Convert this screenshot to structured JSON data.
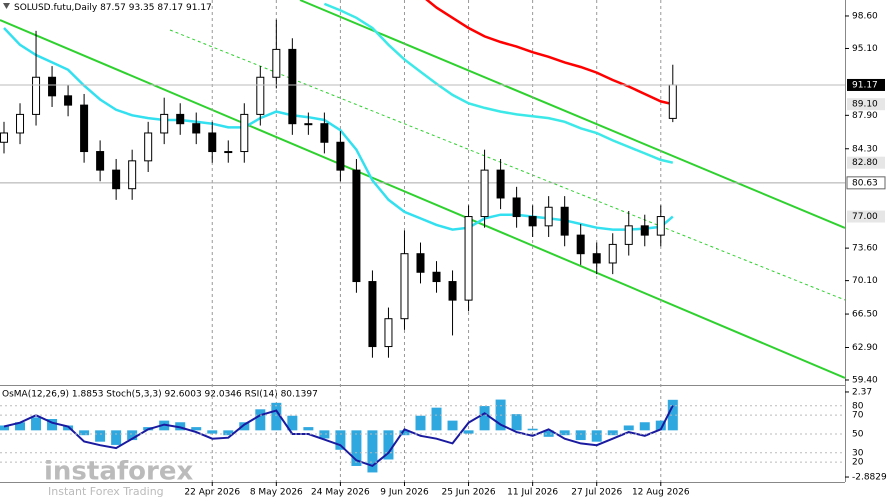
{
  "chart_data": {
    "type": "candlestick",
    "title": "SOLUSD.futu,Daily",
    "x": [
      "2026-03-01",
      "2026-03-05",
      "2026-03-09",
      "2026-03-13",
      "2026-03-17",
      "2026-03-21",
      "2026-03-25",
      "2026-03-29",
      "2026-04-02",
      "2026-04-06",
      "2026-04-10",
      "2026-04-14",
      "2026-04-18",
      "2026-04-22",
      "2026-04-26",
      "2026-04-30",
      "2026-05-04",
      "2026-05-08",
      "2026-05-12",
      "2026-05-16",
      "2026-05-20",
      "2026-05-24",
      "2026-05-28",
      "2026-06-01",
      "2026-06-05",
      "2026-06-09",
      "2026-06-13",
      "2026-06-17",
      "2026-06-21",
      "2026-06-25",
      "2026-06-29",
      "2026-07-03",
      "2026-07-07",
      "2026-07-11",
      "2026-07-15",
      "2026-07-19",
      "2026-07-23",
      "2026-07-27",
      "2026-07-31",
      "2026-08-04",
      "2026-08-08",
      "2026-08-12",
      "2026-08-15"
    ],
    "open": [
      85,
      86,
      88,
      92,
      90,
      89,
      84,
      82,
      80,
      83,
      86,
      88,
      87,
      86,
      84,
      84,
      88,
      92,
      95,
      87,
      87,
      85,
      82,
      70,
      63,
      66,
      73,
      71,
      70,
      68,
      77,
      82,
      79,
      77,
      76,
      78,
      75,
      73,
      72,
      74,
      76,
      75,
      87.57
    ],
    "high": [
      87.2,
      89.2,
      97,
      93.2,
      91.2,
      90.2,
      85.2,
      83.2,
      84.2,
      87.2,
      89.8,
      89.2,
      88.2,
      87.2,
      85.2,
      89.2,
      93.2,
      98.2,
      96.2,
      88.2,
      88.2,
      86.2,
      83.2,
      71.2,
      67.2,
      75.5,
      74.2,
      72.2,
      71.2,
      78.2,
      84.2,
      83.2,
      80.2,
      78.2,
      79.2,
      79.2,
      76.2,
      74.2,
      75.2,
      77.6,
      77.2,
      78.2,
      93.35
    ],
    "low": [
      83.8,
      84.8,
      86.8,
      88.8,
      87.8,
      82.8,
      80.8,
      78.8,
      78.8,
      81.8,
      84.8,
      85.8,
      84.8,
      82.8,
      82.8,
      82.8,
      86.8,
      90.8,
      85.8,
      85.8,
      83.8,
      80.8,
      68.8,
      61.8,
      61.8,
      64.8,
      69.8,
      68.8,
      64.2,
      66.8,
      75.8,
      77.8,
      75.8,
      74.8,
      74.8,
      73.8,
      71.8,
      70.8,
      70.8,
      72.8,
      73.8,
      73.8,
      87.17
    ],
    "close": [
      86,
      88,
      92,
      90,
      89,
      84,
      82,
      80,
      83,
      86,
      88,
      87,
      86,
      84,
      84,
      88,
      92,
      95,
      87,
      87,
      85,
      82,
      70,
      63,
      66,
      73,
      71,
      70,
      68,
      77,
      82,
      79,
      77,
      76,
      78,
      75,
      73,
      72,
      74,
      76,
      75,
      77,
      91.17
    ],
    "close_label_color": "#000000",
    "up_color": "#ffffff",
    "down_color": "#000000",
    "edge_color": "#000000",
    "series": [
      {
        "color": "#ff0000",
        "end_label": "89.10",
        "label_bg": "#e6e6e6",
        "values": [
          null,
          null,
          null,
          null,
          null,
          null,
          null,
          null,
          null,
          null,
          null,
          null,
          null,
          null,
          null,
          null,
          null,
          null,
          null,
          null,
          null,
          null,
          null,
          null,
          null,
          null,
          100.9,
          99.5,
          98.4,
          97.3,
          96.4,
          95.8,
          95.3,
          94.7,
          94.2,
          93.6,
          93.1,
          92.5,
          91.7,
          91.0,
          90.2,
          89.4,
          89.1
        ]
      },
      {
        "color": "#3de8e8",
        "end_label": "82.80",
        "label_bg": "#e6e6e6",
        "values": [
          null,
          null,
          null,
          null,
          null,
          null,
          null,
          null,
          null,
          null,
          null,
          null,
          null,
          null,
          null,
          null,
          null,
          null,
          null,
          null,
          99.9,
          99.2,
          98.4,
          97.3,
          95.5,
          93.9,
          92.6,
          91.3,
          90.1,
          89.2,
          88.7,
          88.3,
          88.0,
          87.8,
          87.6,
          87.2,
          86.5,
          86.0,
          85.2,
          84.5,
          83.8,
          83.1,
          82.8
        ]
      },
      {
        "color": "#33e0f0",
        "end_label": "77.00",
        "label_bg": "#e6e6e6",
        "values": [
          97.3,
          95.5,
          94.4,
          93.6,
          92.8,
          91.1,
          89.6,
          88.5,
          87.9,
          87.6,
          87.4,
          87.4,
          87.2,
          87.0,
          86.6,
          86.6,
          87.6,
          88.3,
          87.9,
          87.7,
          87.4,
          86.3,
          84.2,
          80.9,
          78.8,
          77.5,
          76.8,
          76.1,
          75.6,
          75.8,
          76.8,
          77.2,
          77.2,
          77.0,
          76.8,
          76.6,
          76.2,
          75.8,
          75.6,
          75.6,
          75.7,
          75.9,
          77.0
        ]
      }
    ],
    "levels": [
      {
        "value": 80.63,
        "label": "80.63"
      }
    ],
    "xlim": [
      "2026-02-28",
      "2026-09-27"
    ],
    "ylim": [
      58.86,
      100.32
    ],
    "yticks": [
      {
        "value": 98.6,
        "label": "98.60"
      },
      {
        "value": 95.1,
        "label": "95.10"
      },
      {
        "value": 87.9,
        "label": "87.90"
      },
      {
        "value": 84.3,
        "label": "84.30"
      },
      {
        "value": 73.6,
        "label": "73.60"
      },
      {
        "value": 70.1,
        "label": "70.10"
      },
      {
        "value": 66.5,
        "label": "66.50"
      },
      {
        "value": 62.9,
        "label": "62.90"
      },
      {
        "value": 59.4,
        "label": "59.40"
      }
    ],
    "xticks": [
      {
        "value": "2026-04-22",
        "label": "22 Apr 2026"
      },
      {
        "value": "2026-05-08",
        "label": "8 May 2026"
      },
      {
        "value": "2026-05-24",
        "label": "24 May 2026"
      },
      {
        "value": "2026-06-09",
        "label": "9 Jun 2026"
      },
      {
        "value": "2026-06-25",
        "label": "25 Jun 2026"
      },
      {
        "value": "2026-07-11",
        "label": "11 Jul 2026"
      },
      {
        "value": "2026-07-27",
        "label": "27 Jul 2026"
      },
      {
        "value": "2026-08-12",
        "label": "12 Aug 2026"
      }
    ],
    "grid": "x",
    "indicator": {
      "title": "OsMA(12,26,9) 1.8853 Stoch(5,3,3) 92.6003 92.0346 RSI(14) 80.1397",
      "osma": [
        0.3,
        0.5,
        0.8,
        0.7,
        0.3,
        -0.3,
        -0.7,
        -0.9,
        -0.6,
        0.2,
        0.6,
        0.5,
        0.2,
        -0.2,
        -0.3,
        0.5,
        1.3,
        1.7,
        0.9,
        0.2,
        -0.5,
        -1.2,
        -2.2,
        -2.6,
        -1.8,
        -0.3,
        0.9,
        1.4,
        0.6,
        -0.2,
        1.5,
        1.9,
        1.0,
        0.1,
        -0.4,
        -0.3,
        -0.6,
        -0.7,
        -0.3,
        0.3,
        0.5,
        0.6,
        1.8853
      ],
      "osma_color": "#2fa8e0",
      "osma_ylim": [
        -3.19,
        2.8
      ],
      "osma_yticks": [
        2.37,
        -2.8829
      ],
      "rsi": [
        58,
        62,
        70,
        62,
        58,
        42,
        38,
        35,
        45,
        55,
        60,
        57,
        52,
        45,
        46,
        60,
        70,
        75,
        50,
        50,
        44,
        38,
        22,
        16,
        30,
        55,
        48,
        45,
        40,
        62,
        72,
        60,
        52,
        48,
        55,
        45,
        40,
        38,
        45,
        52,
        48,
        55,
        80.1397
      ],
      "rsi_color": "#1a1aa0",
      "rsi_ylim": [
        -1.1,
        102.1
      ],
      "rsi_yticks": [
        80,
        70,
        50,
        30,
        20
      ]
    },
    "watermark": {
      "brand": "instaforex",
      "tagline": "Instant Forex Trading"
    }
  }
}
